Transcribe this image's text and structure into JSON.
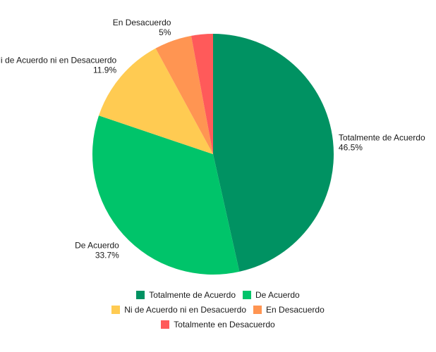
{
  "chart_data": {
    "type": "pie",
    "title": "",
    "categories": [
      "Totalmente de Acuerdo",
      "De Acuerdo",
      "Ni de Acuerdo ni en Desacuerdo",
      "En Desacuerdo",
      "Totalmente en Desacuerdo"
    ],
    "values": [
      46.5,
      33.7,
      11.9,
      5,
      2.9
    ],
    "value_labels": [
      "46.5%",
      "33.7%",
      "11.9%",
      "5%",
      ""
    ],
    "colors": [
      "#009262",
      "#00c46a",
      "#ffcb52",
      "#ff9552",
      "#ff5a5a"
    ],
    "legend_position": "bottom",
    "start_angle": "top, clockwise"
  }
}
